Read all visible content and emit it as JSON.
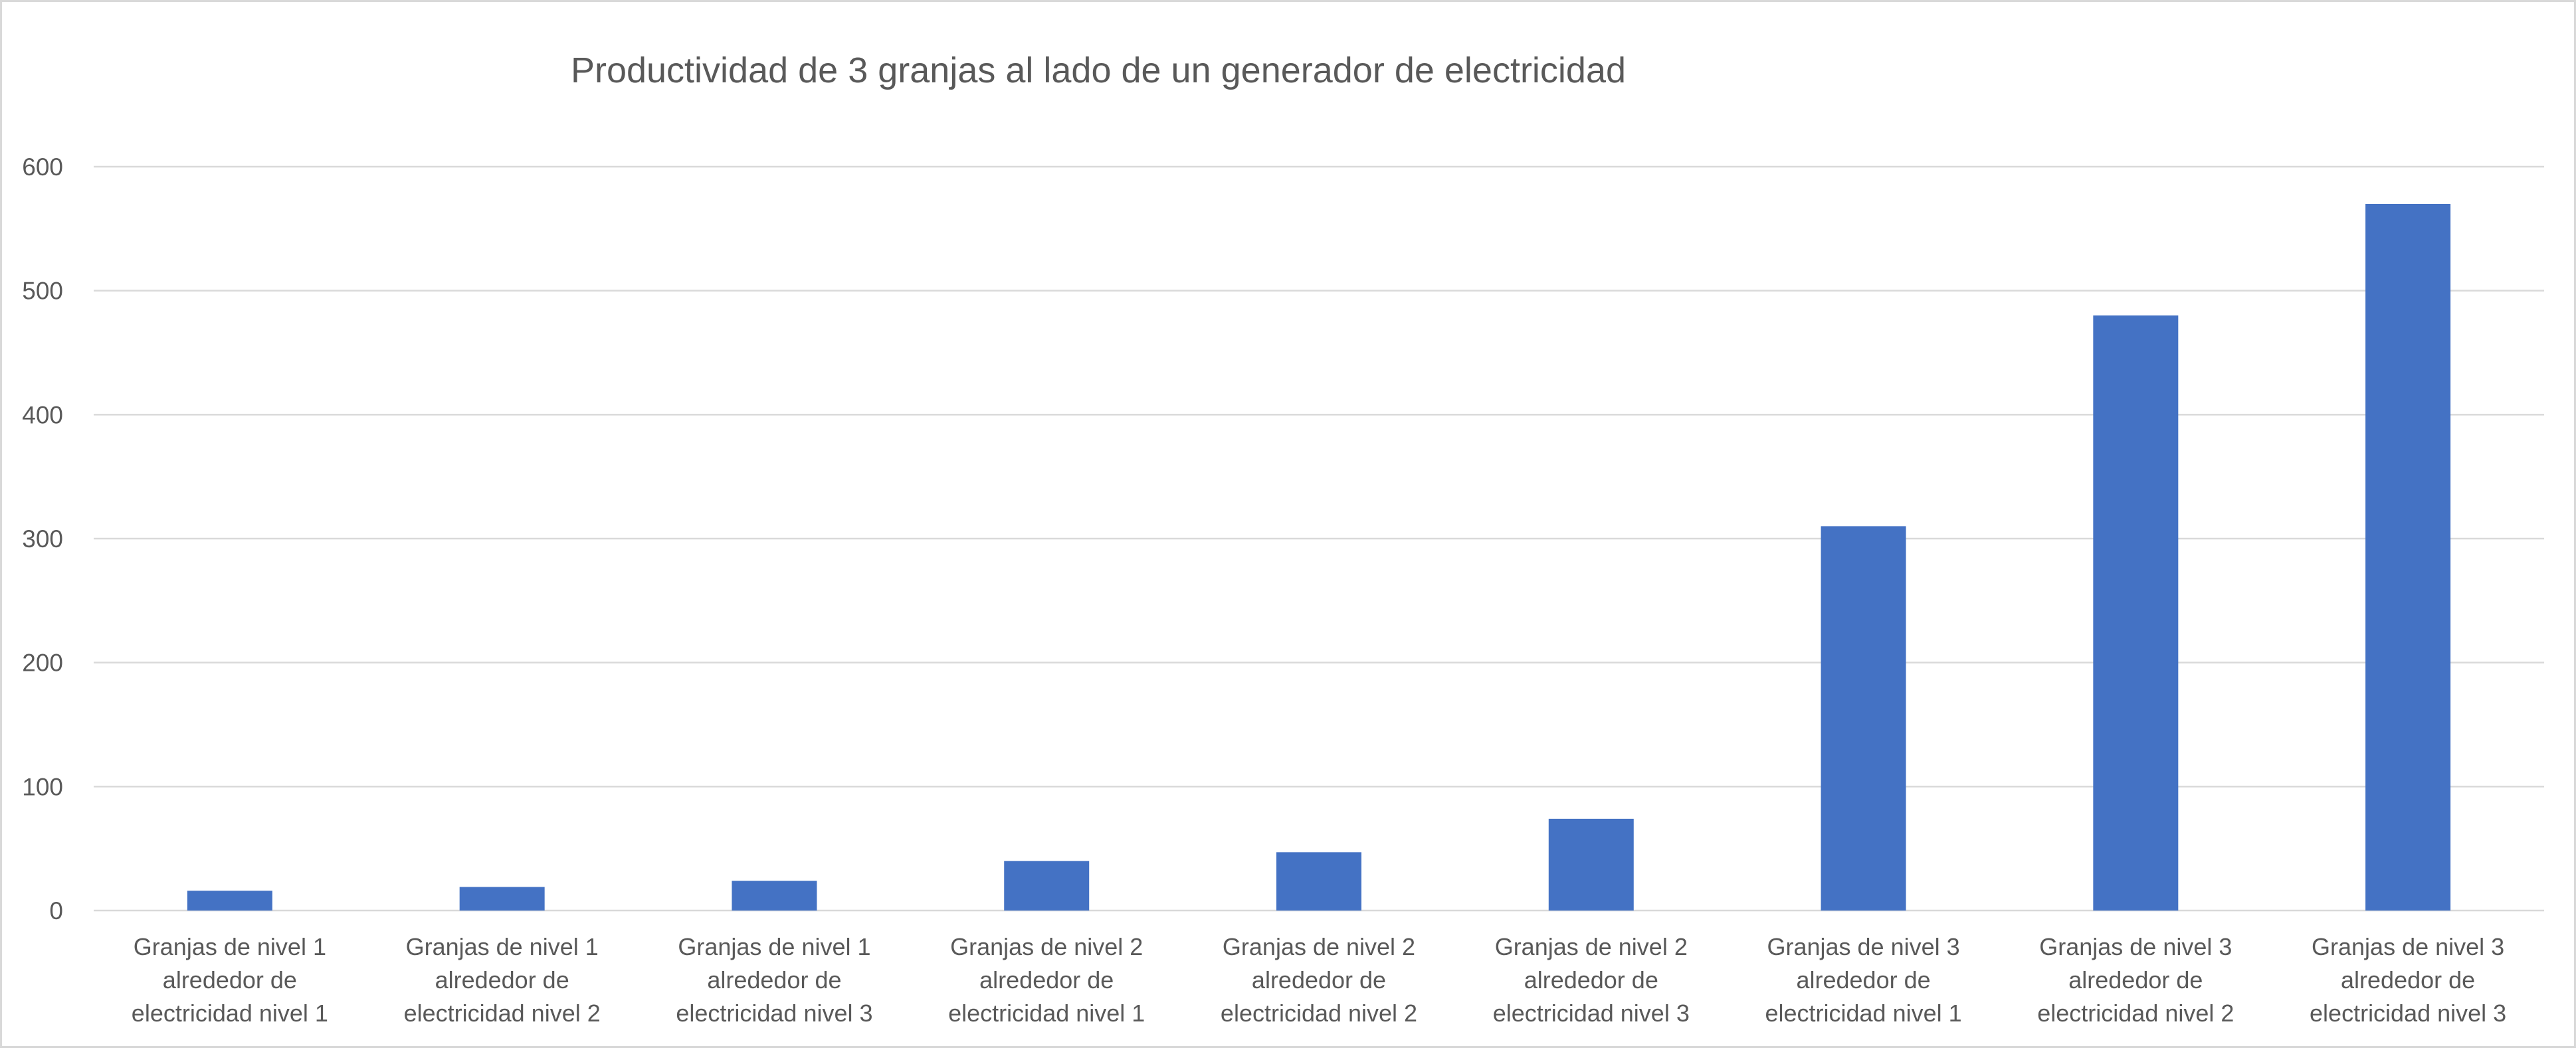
{
  "chart_data": {
    "type": "bar",
    "title": "Productividad de 3 granjas al lado de un generador de electricidad",
    "xlabel": "",
    "ylabel": "",
    "categories": [
      [
        "Granjas de nivel 1",
        "alrededor de",
        "electricidad nivel 1"
      ],
      [
        "Granjas de nivel 1",
        "alrededor de",
        "electricidad nivel 2"
      ],
      [
        "Granjas de nivel 1",
        "alrededor de",
        "electricidad nivel 3"
      ],
      [
        "Granjas de nivel 2",
        "alrededor de",
        "electricidad nivel 1"
      ],
      [
        "Granjas de nivel 2",
        "alrededor de",
        "electricidad nivel 2"
      ],
      [
        "Granjas de nivel 2",
        "alrededor de",
        "electricidad nivel 3"
      ],
      [
        "Granjas de nivel 3",
        "alrededor de",
        "electricidad nivel 1"
      ],
      [
        "Granjas de nivel 3",
        "alrededor de",
        "electricidad nivel 2"
      ],
      [
        "Granjas de nivel 3",
        "alrededor de",
        "electricidad nivel 3"
      ]
    ],
    "values": [
      16,
      19,
      24,
      40,
      47,
      74,
      310,
      480,
      570
    ],
    "ylim": [
      0,
      600
    ],
    "yticks": [
      0,
      100,
      200,
      300,
      400,
      500,
      600
    ],
    "grid": true,
    "legend": "none",
    "colors": {
      "bar": "#4472C4",
      "grid": "#d9d9d9",
      "axis": "#d9d9d9",
      "text": "#595959"
    }
  }
}
